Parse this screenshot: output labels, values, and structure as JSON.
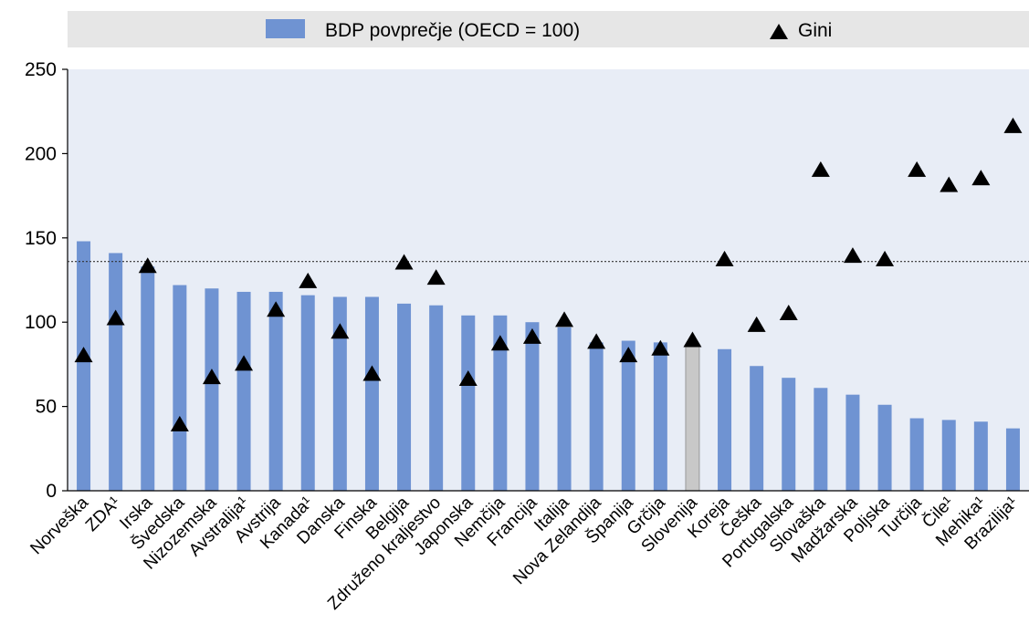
{
  "chart_data": {
    "type": "bar",
    "categories": [
      "Norveška",
      "ZDA¹",
      "Irska",
      "Švedska",
      "Nizozemska",
      "Avstralija¹",
      "Avstrija",
      "Kanada¹",
      "Danska",
      "Finska",
      "Belgija",
      "Združeno kraljestvo",
      "Japonska",
      "Nemčija",
      "Francija",
      "Italija",
      "Nova Zelandija",
      "Španija",
      "Grčija",
      "Slovenija",
      "Koreja",
      "Češka",
      "Portugalska",
      "Slovaška",
      "Madžarska",
      "Poljska",
      "Turčija",
      "Čile¹",
      "Mehika¹",
      "Brazilija¹"
    ],
    "series": [
      {
        "name": "BDP povprečje (OECD = 100)",
        "kind": "bar",
        "color": "#6f93d2",
        "highlight": {
          "index": 19,
          "color": "#c8c8c8"
        },
        "values": [
          148,
          141,
          133,
          122,
          120,
          118,
          118,
          116,
          115,
          115,
          111,
          110,
          104,
          104,
          100,
          97,
          88,
          89,
          88,
          86,
          84,
          74,
          67,
          61,
          57,
          51,
          43,
          42,
          41,
          37
        ]
      },
      {
        "name": "Gini",
        "kind": "marker",
        "marker": "triangle",
        "color": "#000000",
        "values": [
          80,
          102,
          133,
          39,
          67,
          75,
          107,
          124,
          94,
          69,
          135,
          126,
          66,
          87,
          91,
          101,
          88,
          80,
          84,
          89,
          137,
          98,
          105,
          190,
          139,
          137,
          190,
          181,
          185,
          216
        ]
      }
    ],
    "reference_line": {
      "value": 136,
      "style": "dotted"
    },
    "ylim": [
      0,
      250
    ],
    "yticks": [
      0,
      50,
      100,
      150,
      200,
      250
    ],
    "xlabel": "",
    "ylabel": "",
    "grid": false,
    "legend": {
      "placement": "top",
      "background": "#e6e6e6"
    },
    "plot_background": "#e8edf6"
  }
}
